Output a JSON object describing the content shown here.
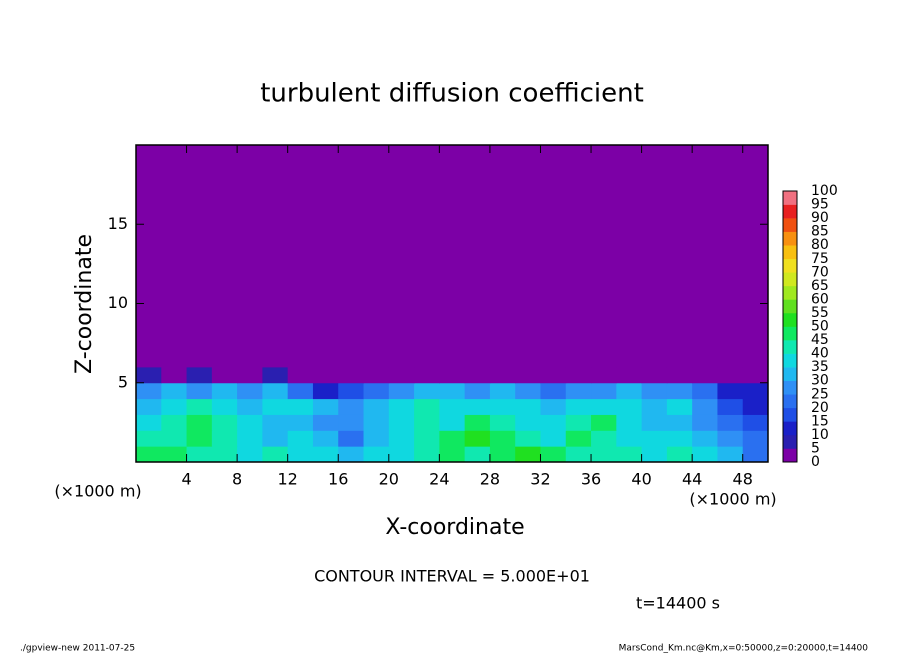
{
  "chart_data": {
    "type": "heatmap",
    "title": "turbulent diffusion coefficient",
    "x_label": "X-coordinate",
    "y_label": "Z-coordinate",
    "x_unit": "(×1000 m)",
    "y_unit": "(×1000 m)",
    "contour_note": "CONTOUR INTERVAL = 5.000E+01",
    "time_label": "t=14400 s",
    "footer_left": "./gpview-new  2011-07-25",
    "footer_right": "MarsCond_Km.nc@Km,x=0:50000,z=0:20000,t=14400",
    "xlim": [
      0,
      50
    ],
    "ylim": [
      0,
      20
    ],
    "xticks": [
      4,
      8,
      12,
      16,
      20,
      24,
      28,
      32,
      36,
      40,
      44,
      48
    ],
    "yticks": [
      5,
      10,
      15
    ],
    "xbins": [
      0,
      2,
      4,
      6,
      8,
      10,
      12,
      14,
      16,
      18,
      20,
      22,
      24,
      26,
      28,
      30,
      32,
      34,
      36,
      38,
      40,
      42,
      44,
      46,
      48,
      50
    ],
    "zbins": [
      0,
      1,
      2,
      3,
      4,
      5,
      6,
      20
    ],
    "z": [
      [
        45,
        45,
        40,
        40,
        35,
        40,
        35,
        35,
        30,
        35,
        35,
        40,
        45,
        40,
        45,
        50,
        45,
        40,
        40,
        40,
        35,
        40,
        35,
        30,
        20
      ],
      [
        40,
        40,
        45,
        40,
        35,
        30,
        35,
        30,
        20,
        30,
        35,
        40,
        45,
        50,
        45,
        40,
        35,
        45,
        40,
        35,
        35,
        35,
        30,
        25,
        20
      ],
      [
        35,
        40,
        45,
        40,
        35,
        30,
        30,
        25,
        25,
        30,
        35,
        40,
        35,
        45,
        40,
        35,
        35,
        40,
        45,
        35,
        30,
        30,
        25,
        20,
        15
      ],
      [
        30,
        35,
        40,
        35,
        30,
        35,
        35,
        30,
        25,
        30,
        35,
        40,
        35,
        35,
        35,
        35,
        30,
        35,
        35,
        35,
        30,
        35,
        25,
        15,
        10
      ],
      [
        25,
        30,
        25,
        30,
        25,
        30,
        20,
        10,
        15,
        20,
        25,
        30,
        30,
        25,
        30,
        25,
        20,
        25,
        25,
        30,
        25,
        25,
        20,
        10,
        10
      ],
      [
        5,
        0,
        5,
        0,
        0,
        5,
        0,
        0,
        0,
        0,
        0,
        0,
        0,
        0,
        0,
        0,
        0,
        0,
        0,
        0,
        0,
        0,
        0,
        0,
        0
      ],
      [
        0,
        0,
        0,
        0,
        0,
        0,
        0,
        0,
        0,
        0,
        0,
        0,
        0,
        0,
        0,
        0,
        0,
        0,
        0,
        0,
        0,
        0,
        0,
        0,
        0
      ]
    ],
    "colorbar": {
      "levels": [
        0,
        5,
        10,
        15,
        20,
        25,
        30,
        35,
        40,
        45,
        50,
        55,
        60,
        65,
        70,
        75,
        80,
        85,
        90,
        95,
        100
      ],
      "colors": [
        "#7c00a6",
        "#2a1fb0",
        "#1a20c8",
        "#1f4fe6",
        "#2a70f0",
        "#2f90f5",
        "#20b8f0",
        "#10d8e0",
        "#10e8b0",
        "#10e860",
        "#20e020",
        "#60e020",
        "#a0e820",
        "#d0e820",
        "#f0e020",
        "#f8c010",
        "#f89010",
        "#f05010",
        "#e82020",
        "#f07080"
      ]
    }
  }
}
